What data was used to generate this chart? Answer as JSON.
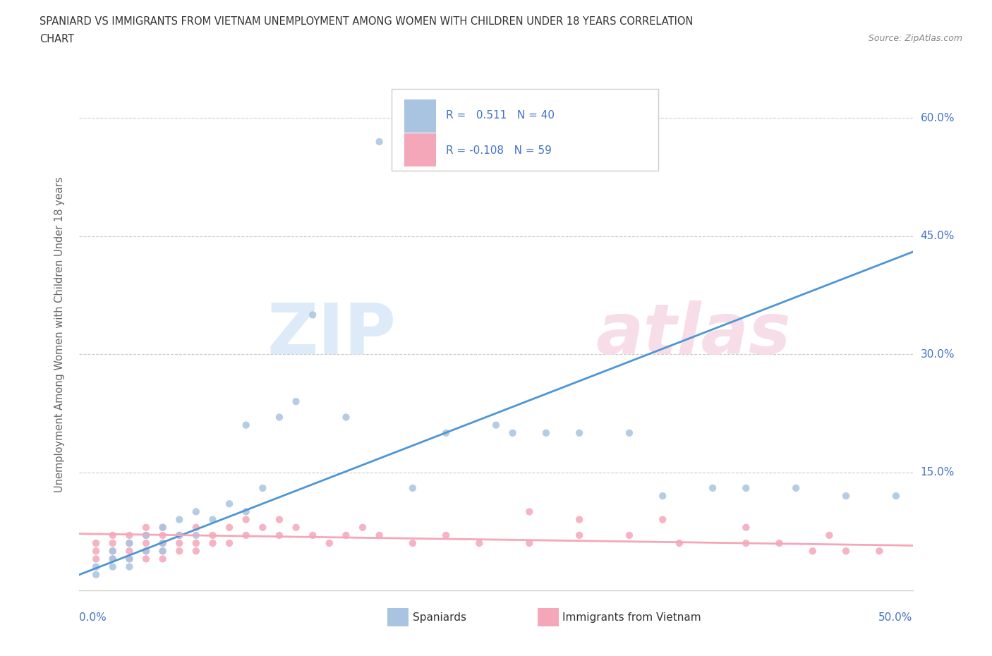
{
  "title_line1": "SPANIARD VS IMMIGRANTS FROM VIETNAM UNEMPLOYMENT AMONG WOMEN WITH CHILDREN UNDER 18 YEARS CORRELATION",
  "title_line2": "CHART",
  "source": "Source: ZipAtlas.com",
  "ylabel": "Unemployment Among Women with Children Under 18 years",
  "y_tick_vals": [
    0.15,
    0.3,
    0.45,
    0.6
  ],
  "y_tick_labels": [
    "15.0%",
    "30.0%",
    "45.0%",
    "60.0%"
  ],
  "legend_label1": "Spaniards",
  "legend_label2": "Immigrants from Vietnam",
  "R1": 0.511,
  "N1": 40,
  "R2": -0.108,
  "N2": 59,
  "color_blue_scatter": "#a8c4e0",
  "color_pink_scatter": "#f4a7b9",
  "color_blue_line": "#4d96d4",
  "color_pink_line": "#f4a7b9",
  "color_text_blue": "#4472c4",
  "color_text_dark": "#333333",
  "color_grid": "#cccccc",
  "xlim": [
    0.0,
    0.5
  ],
  "ylim": [
    0.0,
    0.65
  ],
  "spaniards_x": [
    0.01,
    0.01,
    0.02,
    0.02,
    0.02,
    0.03,
    0.03,
    0.03,
    0.04,
    0.04,
    0.05,
    0.05,
    0.05,
    0.06,
    0.06,
    0.07,
    0.07,
    0.08,
    0.09,
    0.1,
    0.1,
    0.11,
    0.12,
    0.13,
    0.14,
    0.16,
    0.18,
    0.2,
    0.22,
    0.25,
    0.26,
    0.28,
    0.3,
    0.33,
    0.35,
    0.38,
    0.4,
    0.43,
    0.46,
    0.49
  ],
  "spaniards_y": [
    0.02,
    0.03,
    0.03,
    0.04,
    0.05,
    0.03,
    0.04,
    0.06,
    0.05,
    0.07,
    0.05,
    0.06,
    0.08,
    0.07,
    0.09,
    0.07,
    0.1,
    0.09,
    0.11,
    0.1,
    0.21,
    0.13,
    0.22,
    0.24,
    0.35,
    0.22,
    0.57,
    0.13,
    0.2,
    0.21,
    0.2,
    0.2,
    0.2,
    0.2,
    0.12,
    0.13,
    0.13,
    0.13,
    0.12,
    0.12
  ],
  "vietnam_x": [
    0.01,
    0.01,
    0.01,
    0.02,
    0.02,
    0.02,
    0.02,
    0.03,
    0.03,
    0.03,
    0.03,
    0.04,
    0.04,
    0.04,
    0.04,
    0.04,
    0.05,
    0.05,
    0.05,
    0.05,
    0.05,
    0.06,
    0.06,
    0.06,
    0.07,
    0.07,
    0.07,
    0.08,
    0.08,
    0.09,
    0.09,
    0.1,
    0.1,
    0.11,
    0.12,
    0.12,
    0.13,
    0.14,
    0.15,
    0.16,
    0.17,
    0.18,
    0.2,
    0.22,
    0.24,
    0.27,
    0.3,
    0.33,
    0.36,
    0.4,
    0.42,
    0.44,
    0.46,
    0.48,
    0.27,
    0.3,
    0.35,
    0.4,
    0.45
  ],
  "vietnam_y": [
    0.04,
    0.05,
    0.06,
    0.04,
    0.05,
    0.06,
    0.07,
    0.04,
    0.05,
    0.06,
    0.07,
    0.04,
    0.05,
    0.06,
    0.07,
    0.08,
    0.04,
    0.05,
    0.06,
    0.07,
    0.08,
    0.05,
    0.06,
    0.07,
    0.05,
    0.06,
    0.08,
    0.06,
    0.07,
    0.06,
    0.08,
    0.07,
    0.09,
    0.08,
    0.07,
    0.09,
    0.08,
    0.07,
    0.06,
    0.07,
    0.08,
    0.07,
    0.06,
    0.07,
    0.06,
    0.06,
    0.07,
    0.07,
    0.06,
    0.06,
    0.06,
    0.05,
    0.05,
    0.05,
    0.1,
    0.09,
    0.09,
    0.08,
    0.07
  ]
}
